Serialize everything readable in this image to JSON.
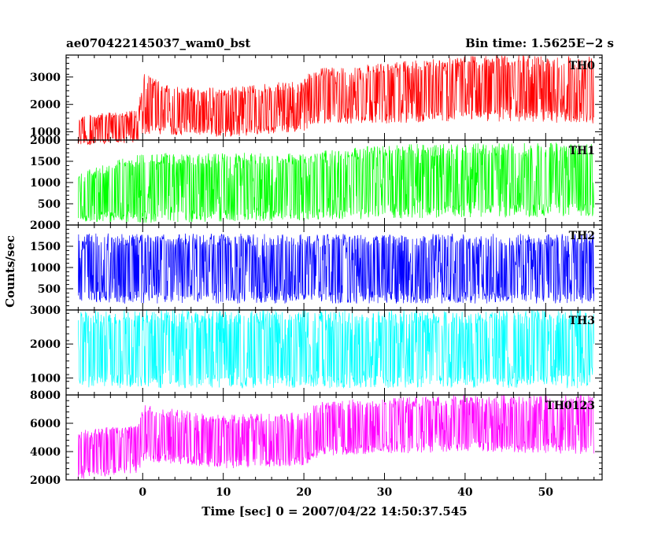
{
  "header": {
    "title": "ae070422145037_wam0_bst",
    "bin_time": "Bin time: 1.5625E−2 s"
  },
  "axes": {
    "ylabel": "Counts/sec",
    "xlabel": "Time [sec] 0 = 2007/04/22 14:50:37.545"
  },
  "chart_data": {
    "type": "line",
    "title": "ae070422145037_wam0_bst",
    "subtitle": "Bin time: 1.5625E−2 s",
    "xlabel": "Time [sec] 0 = 2007/04/22 14:50:37.545",
    "ylabel": "Counts/sec",
    "xlim": [
      -9.5,
      57
    ],
    "x_data_range": [
      -8,
      56
    ],
    "x_ticks": [
      0,
      10,
      20,
      30,
      40,
      50
    ],
    "bin_time_s": 0.015625,
    "panels": [
      {
        "name": "TH0",
        "color": "#ff0000",
        "ylim": [
          700,
          3800
        ],
        "y_ticks": [
          1000,
          2000,
          3000
        ],
        "y_tick_labels": [
          "1000",
          "2000",
          "3000"
        ],
        "envelope": [
          {
            "t": -8,
            "min": 500,
            "max": 1600
          },
          {
            "t": -0.5,
            "min": 600,
            "max": 1800
          },
          {
            "t": 0,
            "min": 900,
            "max": 3200
          },
          {
            "t": 3,
            "min": 900,
            "max": 2700
          },
          {
            "t": 10,
            "min": 800,
            "max": 2600
          },
          {
            "t": 20,
            "min": 1000,
            "max": 2900
          },
          {
            "t": 21,
            "min": 1300,
            "max": 3300
          },
          {
            "t": 30,
            "min": 1300,
            "max": 3500
          },
          {
            "t": 40,
            "min": 1400,
            "max": 3800
          },
          {
            "t": 56,
            "min": 1300,
            "max": 3800
          }
        ]
      },
      {
        "name": "TH1",
        "color": "#00ff00",
        "ylim": [
          0,
          2000
        ],
        "y_ticks": [
          500,
          1000,
          1500,
          2000
        ],
        "y_tick_labels": [
          "500",
          "1000",
          "1500",
          "2000"
        ],
        "envelope": [
          {
            "t": -8,
            "min": 50,
            "max": 1300
          },
          {
            "t": 0,
            "min": 50,
            "max": 1700
          },
          {
            "t": 20,
            "min": 100,
            "max": 1700
          },
          {
            "t": 30,
            "min": 150,
            "max": 1900
          },
          {
            "t": 56,
            "min": 200,
            "max": 1950
          }
        ]
      },
      {
        "name": "TH2",
        "color": "#0000ff",
        "ylim": [
          0,
          2000
        ],
        "y_ticks": [
          500,
          1000,
          1500,
          2000
        ],
        "y_tick_labels": [
          "500",
          "1000",
          "1500",
          "2000"
        ],
        "envelope": [
          {
            "t": -8,
            "min": 150,
            "max": 1800
          },
          {
            "t": 56,
            "min": 150,
            "max": 1800
          }
        ]
      },
      {
        "name": "TH3",
        "color": "#00ffff",
        "ylim": [
          500,
          3000
        ],
        "y_ticks": [
          1000,
          2000,
          3000
        ],
        "y_tick_labels": [
          "1000",
          "2000",
          "3000"
        ],
        "envelope": [
          {
            "t": -8,
            "min": 700,
            "max": 3000
          },
          {
            "t": 56,
            "min": 700,
            "max": 3000
          }
        ]
      },
      {
        "name": "TH0123",
        "color": "#ff00ff",
        "ylim": [
          2000,
          8000
        ],
        "y_ticks": [
          2000,
          4000,
          6000,
          8000
        ],
        "y_tick_labels": [
          "2000",
          "4000",
          "6000",
          "8000"
        ],
        "envelope": [
          {
            "t": -8,
            "min": 2000,
            "max": 5500
          },
          {
            "t": -0.5,
            "min": 2500,
            "max": 6000
          },
          {
            "t": 0,
            "min": 3300,
            "max": 7300
          },
          {
            "t": 10,
            "min": 2800,
            "max": 6600
          },
          {
            "t": 20,
            "min": 3000,
            "max": 6800
          },
          {
            "t": 22,
            "min": 3700,
            "max": 7600
          },
          {
            "t": 40,
            "min": 4000,
            "max": 8000
          },
          {
            "t": 56,
            "min": 3800,
            "max": 8000
          }
        ]
      }
    ]
  }
}
